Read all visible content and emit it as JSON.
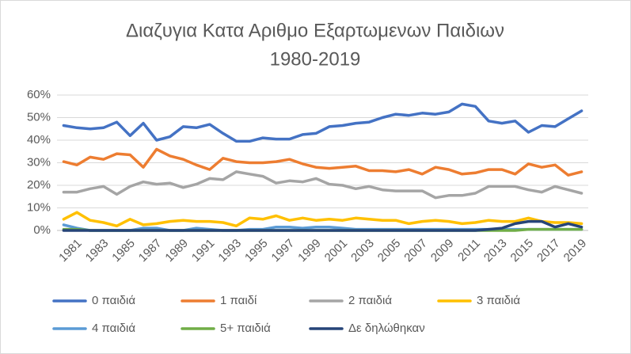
{
  "chart_data": {
    "type": "line",
    "title": "Διαζυγια Κατα Αριθμο Εξαρτωμενων Παιδιων",
    "subtitle": "1980-2019",
    "categories": [
      null,
      "1981",
      null,
      "1983",
      null,
      "1985",
      null,
      "1987",
      null,
      "1989",
      null,
      "1991",
      null,
      "1993",
      null,
      "1995",
      null,
      "1997",
      null,
      "1999",
      null,
      "2001",
      null,
      "2003",
      null,
      "2005",
      null,
      "2007",
      null,
      "2009",
      null,
      "2011",
      null,
      "2013",
      null,
      "2015",
      null,
      "2017",
      null,
      "2019"
    ],
    "ylim": [
      0,
      60
    ],
    "yticks": [
      {
        "value": 0,
        "label": "0%"
      },
      {
        "value": 10,
        "label": "10%"
      },
      {
        "value": 20,
        "label": "20%"
      },
      {
        "value": 30,
        "label": "30%"
      },
      {
        "value": 40,
        "label": "40%"
      },
      {
        "value": 50,
        "label": "50%"
      },
      {
        "value": 60,
        "label": "60%"
      }
    ],
    "grid": true,
    "legend": "bottom",
    "series": [
      {
        "name": "0 παιδιά",
        "color": "#4472c4",
        "values": [
          46.5,
          45.5,
          45,
          45.5,
          48,
          42,
          47.5,
          40,
          41.5,
          46,
          45.5,
          47,
          43,
          39.5,
          39.5,
          41,
          40.5,
          40.5,
          42.5,
          43,
          46,
          46.5,
          47.5,
          48,
          50,
          51.5,
          51,
          52,
          51.5,
          52.5,
          56,
          55,
          48.5,
          47.5,
          48.5,
          43.5,
          46.5,
          46,
          49.5,
          53
        ]
      },
      {
        "name": "1 παιδί",
        "color": "#ed7d31",
        "values": [
          30.5,
          29,
          32.5,
          31.5,
          34,
          33.5,
          28,
          36,
          33,
          31.5,
          29,
          27,
          32,
          30.5,
          30,
          30,
          30.5,
          31.5,
          29.5,
          28,
          27.5,
          28,
          28.5,
          26.5,
          26.5,
          26,
          27,
          25,
          28,
          27,
          25,
          25.5,
          27,
          27,
          25,
          29.5,
          28,
          29,
          24.5,
          26
        ]
      },
      {
        "name": "2 παιδιά",
        "color": "#a5a5a5",
        "values": [
          17,
          17,
          18.5,
          19.5,
          16,
          19.5,
          21.5,
          20.5,
          21,
          19,
          20.5,
          23,
          22.5,
          26,
          25,
          24,
          21,
          22,
          21.5,
          23,
          20.5,
          20,
          18.5,
          19.5,
          18,
          17.5,
          17.5,
          17.5,
          14.5,
          15.5,
          15.5,
          16.5,
          19.5,
          19.5,
          19.5,
          18,
          17,
          19.5,
          18,
          16.5
        ]
      },
      {
        "name": "3 παιδιά",
        "color": "#ffc000",
        "values": [
          5,
          8,
          4.5,
          3.5,
          2,
          5,
          2.5,
          3,
          4,
          4.5,
          4,
          4,
          3.5,
          2,
          5.5,
          5,
          6.5,
          4.5,
          5.5,
          4.5,
          5,
          4.5,
          5.5,
          5,
          4.5,
          4.5,
          3,
          4,
          4.5,
          4,
          3,
          3.5,
          4.5,
          4,
          4,
          5.5,
          4,
          3.5,
          3.5,
          3
        ]
      },
      {
        "name": "4 παιδιά",
        "color": "#5b9bd5",
        "values": [
          2.5,
          1,
          0,
          0,
          0,
          0,
          1,
          1,
          0,
          0,
          1,
          0.5,
          0,
          0,
          0.5,
          0.5,
          1.5,
          1.5,
          1,
          1.5,
          1.5,
          1,
          0.5,
          0.5,
          0.5,
          0.5,
          0.5,
          0.5,
          0.5,
          0.5,
          0.5,
          0.5,
          0.5,
          0.5,
          0.5,
          0.5,
          0.5,
          0.5,
          0.5,
          0.5
        ]
      },
      {
        "name": "5+ παιδιά",
        "color": "#70ad47",
        "values": [
          0.5,
          0.5,
          0,
          0,
          0,
          0,
          0,
          0,
          0,
          0,
          0,
          0,
          0,
          0,
          0,
          0,
          0,
          0,
          0,
          0,
          0,
          0,
          0,
          0,
          0,
          0,
          0,
          0,
          0,
          0,
          0,
          0,
          0,
          0,
          0,
          0.5,
          0.5,
          0.5,
          0.5,
          0.5
        ]
      },
      {
        "name": "Δε δηλώθηκαν",
        "color": "#264478",
        "values": [
          0,
          0,
          0,
          0,
          0,
          0,
          0,
          0,
          0,
          0,
          0,
          0,
          0,
          0,
          0,
          0,
          0,
          0,
          0,
          0,
          0,
          0,
          0,
          0,
          0,
          0,
          0,
          0,
          0,
          0,
          0,
          0,
          0.5,
          1,
          3,
          4,
          4,
          1.5,
          3,
          1.5
        ]
      }
    ]
  }
}
